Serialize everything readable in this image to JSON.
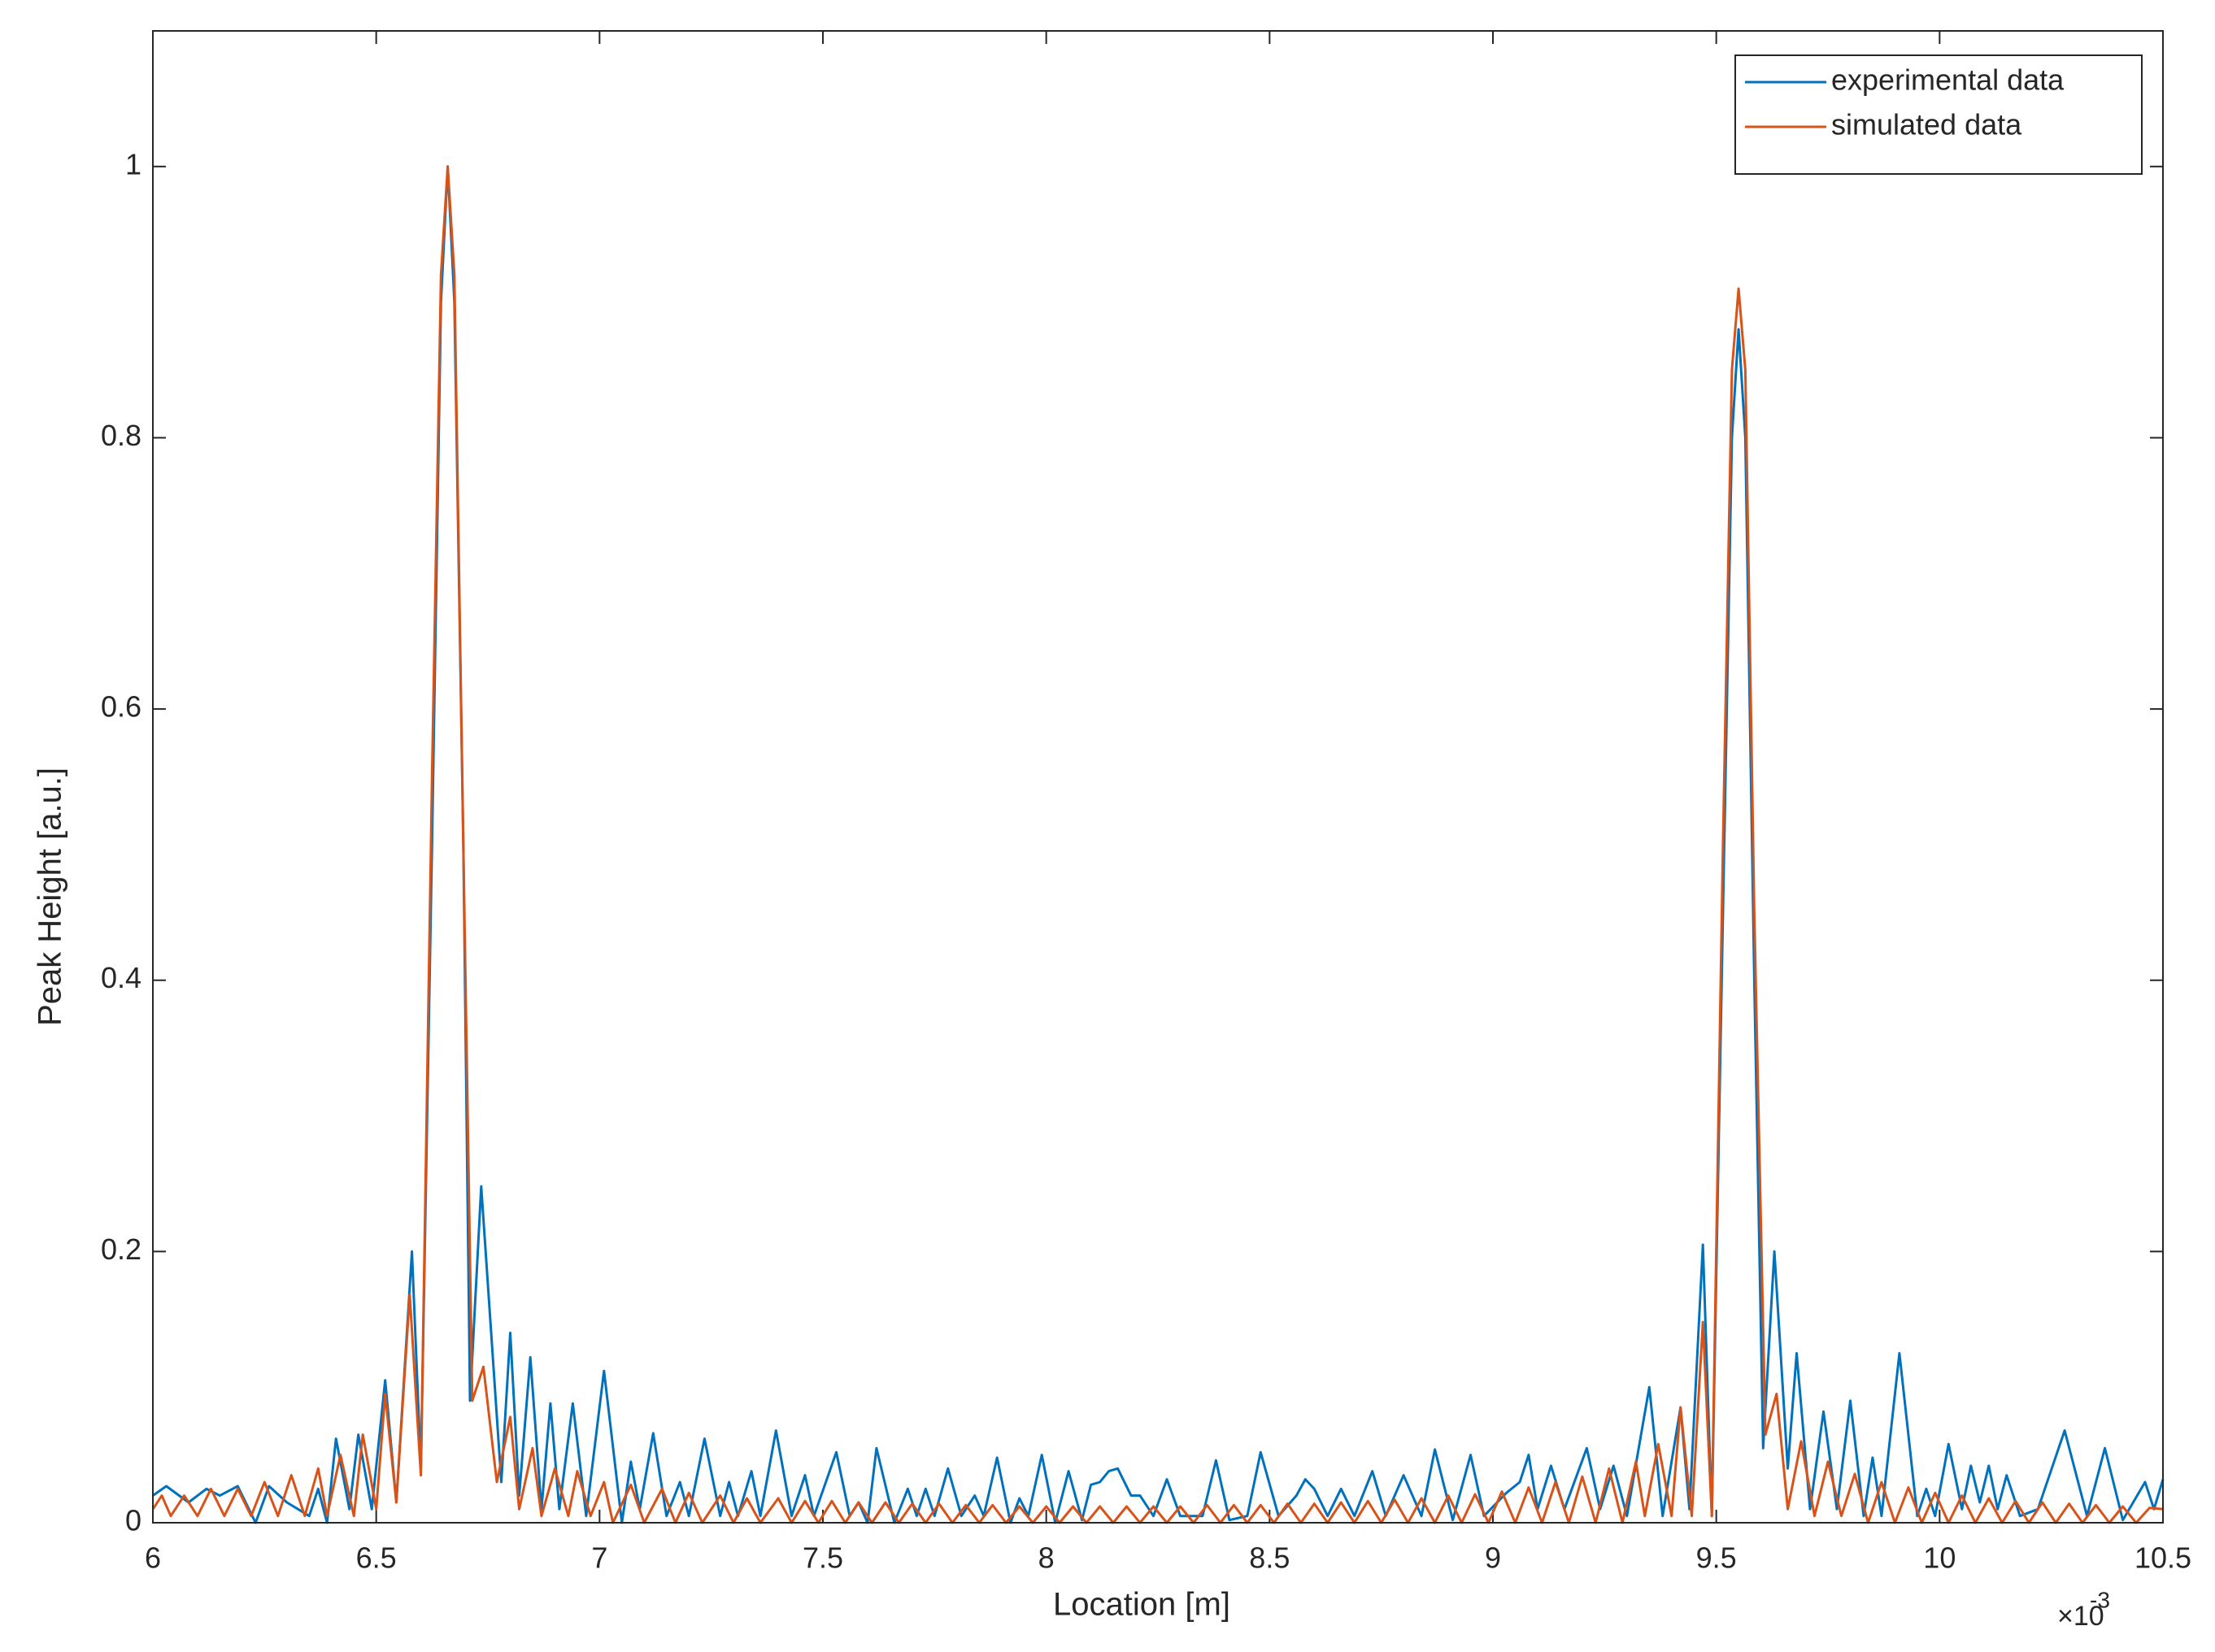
{
  "chart_data": {
    "type": "line",
    "xlabel": "Location [m]",
    "ylabel": "Peak Height [a.u.]",
    "x_multiplier": "×10",
    "x_multiplier_exponent": "-3",
    "xlim": [
      6,
      10.5
    ],
    "xticks": [
      6,
      6.5,
      7,
      7.5,
      8,
      8.5,
      9,
      9.5,
      10,
      10.5
    ],
    "ylim": [
      0,
      1.1
    ],
    "yticks": [
      0,
      0.2,
      0.4,
      0.6,
      0.8,
      1
    ],
    "grid": false,
    "legend": "upper right",
    "series": [
      {
        "name": "experimental data",
        "color": "#0072bd",
        "x": [
          6.0,
          6.03,
          6.08,
          6.12,
          6.15,
          6.19,
          6.23,
          6.26,
          6.3,
          6.35,
          6.37,
          6.39,
          6.41,
          6.44,
          6.46,
          6.49,
          6.52,
          6.545,
          6.58,
          6.6,
          6.625,
          6.645,
          6.66,
          6.675,
          6.695,
          6.71,
          6.735,
          6.78,
          6.8,
          6.82,
          6.845,
          6.87,
          6.89,
          6.91,
          6.94,
          6.97,
          7.01,
          7.05,
          7.07,
          7.09,
          7.12,
          7.15,
          7.18,
          7.2,
          7.235,
          7.27,
          7.29,
          7.31,
          7.34,
          7.36,
          7.395,
          7.43,
          7.46,
          7.48,
          7.53,
          7.56,
          7.58,
          7.6,
          7.62,
          7.66,
          7.69,
          7.71,
          7.73,
          7.75,
          7.78,
          7.81,
          7.84,
          7.86,
          7.89,
          7.92,
          7.94,
          7.96,
          7.99,
          8.02,
          8.05,
          8.08,
          8.1,
          8.12,
          8.14,
          8.16,
          8.19,
          8.21,
          8.24,
          8.27,
          8.3,
          8.35,
          8.38,
          8.41,
          8.45,
          8.48,
          8.52,
          8.56,
          8.58,
          8.6,
          8.63,
          8.66,
          8.69,
          8.73,
          8.76,
          8.8,
          8.84,
          8.87,
          8.91,
          8.95,
          8.98,
          9.03,
          9.06,
          9.08,
          9.1,
          9.13,
          9.16,
          9.21,
          9.24,
          9.27,
          9.3,
          9.35,
          9.38,
          9.42,
          9.44,
          9.47,
          9.49,
          9.515,
          9.535,
          9.55,
          9.565,
          9.585,
          9.605,
          9.63,
          9.66,
          9.68,
          9.71,
          9.74,
          9.77,
          9.8,
          9.83,
          9.85,
          9.87,
          9.91,
          9.95,
          9.97,
          9.99,
          10.02,
          10.05,
          10.07,
          10.09,
          10.11,
          10.13,
          10.15,
          10.18,
          10.22,
          10.28,
          10.33,
          10.37,
          10.41,
          10.46,
          10.48,
          10.5
        ],
        "values": [
          0.02,
          0.027,
          0.015,
          0.025,
          0.02,
          0.027,
          0.0,
          0.027,
          0.015,
          0.005,
          0.025,
          0.0,
          0.062,
          0.01,
          0.065,
          0.01,
          0.105,
          0.015,
          0.2,
          0.04,
          0.5,
          0.9,
          1.0,
          0.9,
          0.5,
          0.09,
          0.248,
          0.03,
          0.14,
          0.02,
          0.122,
          0.01,
          0.088,
          0.01,
          0.088,
          0.005,
          0.112,
          0.0,
          0.045,
          0.01,
          0.066,
          0.005,
          0.03,
          0.005,
          0.062,
          0.005,
          0.03,
          0.005,
          0.038,
          0.005,
          0.068,
          0.005,
          0.035,
          0.005,
          0.052,
          0.005,
          0.015,
          0.0,
          0.055,
          0.0,
          0.025,
          0.005,
          0.025,
          0.005,
          0.04,
          0.005,
          0.02,
          0.005,
          0.048,
          0.0,
          0.018,
          0.005,
          0.05,
          0.0,
          0.038,
          0.002,
          0.028,
          0.03,
          0.038,
          0.04,
          0.02,
          0.02,
          0.005,
          0.032,
          0.005,
          0.005,
          0.046,
          0.002,
          0.005,
          0.052,
          0.005,
          0.02,
          0.032,
          0.025,
          0.005,
          0.025,
          0.005,
          0.038,
          0.005,
          0.035,
          0.005,
          0.054,
          0.002,
          0.05,
          0.005,
          0.022,
          0.03,
          0.05,
          0.01,
          0.042,
          0.01,
          0.055,
          0.01,
          0.042,
          0.005,
          0.1,
          0.005,
          0.085,
          0.01,
          0.205,
          0.005,
          0.45,
          0.8,
          0.88,
          0.8,
          0.4,
          0.055,
          0.2,
          0.04,
          0.125,
          0.01,
          0.082,
          0.01,
          0.09,
          0.005,
          0.048,
          0.005,
          0.125,
          0.005,
          0.025,
          0.005,
          0.058,
          0.01,
          0.042,
          0.015,
          0.042,
          0.01,
          0.035,
          0.005,
          0.01,
          0.068,
          0.005,
          0.055,
          0.002,
          0.03,
          0.01,
          0.032
        ]
      },
      {
        "name": "simulated data",
        "color": "#d95319",
        "x": [
          6.0,
          6.02,
          6.04,
          6.07,
          6.1,
          6.13,
          6.16,
          6.19,
          6.22,
          6.25,
          6.28,
          6.31,
          6.34,
          6.37,
          6.39,
          6.42,
          6.45,
          6.47,
          6.5,
          6.52,
          6.545,
          6.575,
          6.6,
          6.625,
          6.645,
          6.66,
          6.675,
          6.695,
          6.715,
          6.74,
          6.77,
          6.8,
          6.82,
          6.85,
          6.87,
          6.9,
          6.93,
          6.95,
          6.98,
          7.01,
          7.03,
          7.07,
          7.1,
          7.14,
          7.17,
          7.2,
          7.23,
          7.27,
          7.3,
          7.33,
          7.36,
          7.4,
          7.43,
          7.46,
          7.49,
          7.52,
          7.55,
          7.58,
          7.61,
          7.64,
          7.67,
          7.7,
          7.73,
          7.76,
          7.79,
          7.82,
          7.85,
          7.88,
          7.91,
          7.94,
          7.97,
          8.0,
          8.03,
          8.06,
          8.09,
          8.12,
          8.15,
          8.18,
          8.21,
          8.24,
          8.27,
          8.3,
          8.33,
          8.36,
          8.39,
          8.42,
          8.45,
          8.48,
          8.51,
          8.54,
          8.57,
          8.6,
          8.63,
          8.66,
          8.69,
          8.72,
          8.75,
          8.78,
          8.81,
          8.84,
          8.87,
          8.9,
          8.93,
          8.96,
          8.99,
          9.02,
          9.05,
          9.08,
          9.11,
          9.14,
          9.17,
          9.2,
          9.23,
          9.26,
          9.29,
          9.32,
          9.34,
          9.37,
          9.4,
          9.42,
          9.445,
          9.47,
          9.49,
          9.515,
          9.535,
          9.55,
          9.565,
          9.585,
          9.61,
          9.635,
          9.66,
          9.69,
          9.72,
          9.75,
          9.78,
          9.81,
          9.84,
          9.87,
          9.9,
          9.93,
          9.96,
          9.99,
          10.02,
          10.05,
          10.08,
          10.11,
          10.14,
          10.17,
          10.2,
          10.23,
          10.26,
          10.29,
          10.32,
          10.35,
          10.38,
          10.41,
          10.44,
          10.47,
          10.5
        ],
        "values": [
          0.01,
          0.02,
          0.005,
          0.02,
          0.005,
          0.025,
          0.005,
          0.025,
          0.005,
          0.03,
          0.005,
          0.035,
          0.005,
          0.04,
          0.005,
          0.05,
          0.005,
          0.065,
          0.01,
          0.095,
          0.015,
          0.168,
          0.035,
          0.55,
          0.92,
          1.0,
          0.92,
          0.5,
          0.09,
          0.115,
          0.03,
          0.078,
          0.01,
          0.055,
          0.005,
          0.04,
          0.005,
          0.038,
          0.005,
          0.03,
          0.0,
          0.028,
          0.0,
          0.025,
          0.0,
          0.022,
          0.0,
          0.02,
          0.0,
          0.018,
          0.0,
          0.018,
          0,
          0.016,
          0,
          0.016,
          0,
          0.015,
          0,
          0.015,
          0,
          0.014,
          0,
          0.014,
          0,
          0.013,
          0,
          0.013,
          0,
          0.012,
          0,
          0.012,
          0,
          0.012,
          0,
          0.012,
          0,
          0.012,
          0,
          0.012,
          0,
          0.012,
          0,
          0.013,
          0,
          0.013,
          0,
          0.013,
          0,
          0.014,
          0,
          0.014,
          0,
          0.015,
          0,
          0.016,
          0,
          0.017,
          0,
          0.018,
          0,
          0.02,
          0,
          0.021,
          0,
          0.023,
          0,
          0.026,
          0,
          0.03,
          0,
          0.034,
          0,
          0.04,
          0,
          0.045,
          0.005,
          0.058,
          0.005,
          0.085,
          0.005,
          0.148,
          0.005,
          0.5,
          0.85,
          0.91,
          0.85,
          0.45,
          0.065,
          0.095,
          0.01,
          0.06,
          0.005,
          0.045,
          0.005,
          0.036,
          0.0,
          0.03,
          0,
          0.026,
          0,
          0.022,
          0,
          0.02,
          0,
          0.018,
          0,
          0.016,
          0,
          0.015,
          0,
          0.014,
          0,
          0.013,
          0,
          0.012,
          0,
          0.011,
          0.01
        ]
      }
    ]
  }
}
